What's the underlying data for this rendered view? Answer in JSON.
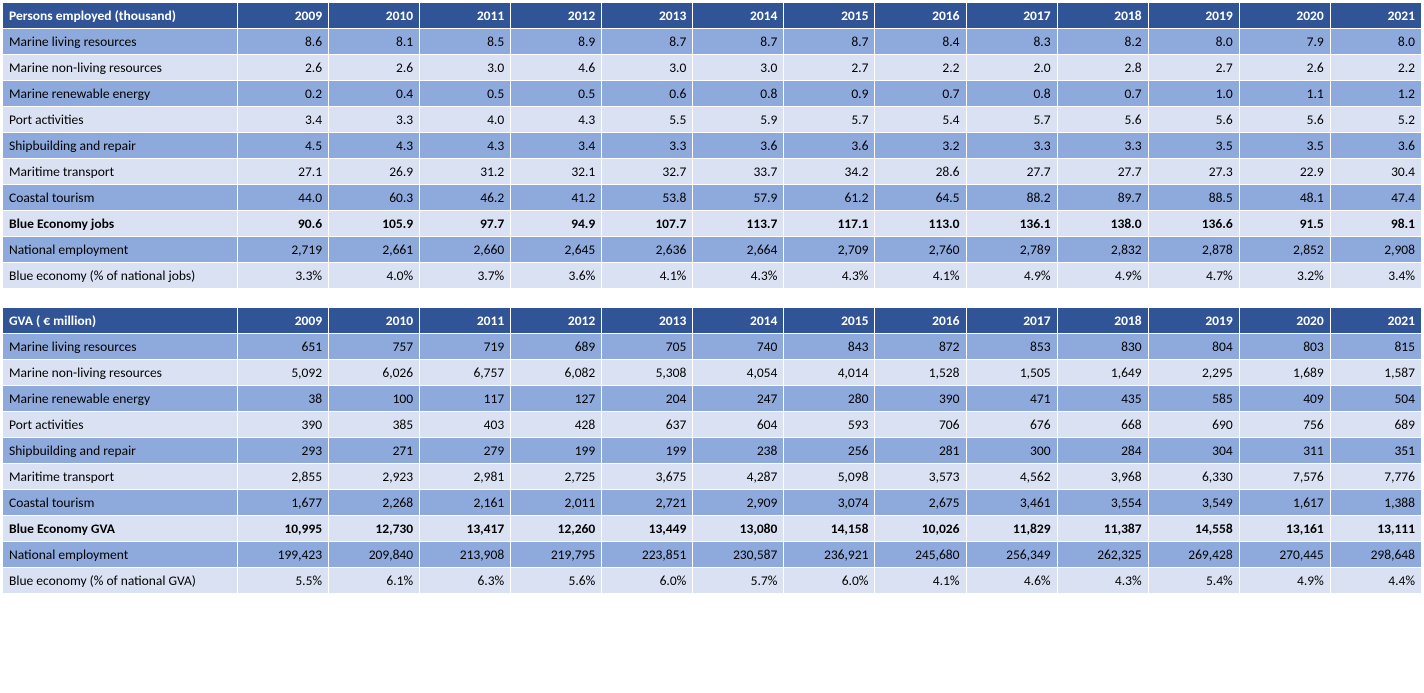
{
  "colors": {
    "header_bg": "#305496",
    "header_fg": "#ffffff",
    "band_dark": "#8ea9db",
    "band_light": "#d9e1f2",
    "text": "#000000"
  },
  "years": [
    "2009",
    "2010",
    "2011",
    "2012",
    "2013",
    "2014",
    "2015",
    "2016",
    "2017",
    "2018",
    "2019",
    "2020",
    "2021"
  ],
  "tables": [
    {
      "title": "Persons employed (thousand)",
      "rows": [
        {
          "label": "Marine living resources",
          "band": "dark",
          "bold": false,
          "values": [
            "8.6",
            "8.1",
            "8.5",
            "8.9",
            "8.7",
            "8.7",
            "8.7",
            "8.4",
            "8.3",
            "8.2",
            "8.0",
            "7.9",
            "8.0"
          ]
        },
        {
          "label": "Marine non-living resources",
          "band": "light",
          "bold": false,
          "values": [
            "2.6",
            "2.6",
            "3.0",
            "4.6",
            "3.0",
            "3.0",
            "2.7",
            "2.2",
            "2.0",
            "2.8",
            "2.7",
            "2.6",
            "2.2"
          ]
        },
        {
          "label": "Marine renewable energy",
          "band": "dark",
          "bold": false,
          "values": [
            "0.2",
            "0.4",
            "0.5",
            "0.5",
            "0.6",
            "0.8",
            "0.9",
            "0.7",
            "0.8",
            "0.7",
            "1.0",
            "1.1",
            "1.2"
          ]
        },
        {
          "label": "Port activities",
          "band": "light",
          "bold": false,
          "values": [
            "3.4",
            "3.3",
            "4.0",
            "4.3",
            "5.5",
            "5.9",
            "5.7",
            "5.4",
            "5.7",
            "5.6",
            "5.6",
            "5.6",
            "5.2"
          ]
        },
        {
          "label": "Shipbuilding and repair",
          "band": "dark",
          "bold": false,
          "values": [
            "4.5",
            "4.3",
            "4.3",
            "3.4",
            "3.3",
            "3.6",
            "3.6",
            "3.2",
            "3.3",
            "3.3",
            "3.5",
            "3.5",
            "3.6"
          ]
        },
        {
          "label": "Maritime transport",
          "band": "light",
          "bold": false,
          "values": [
            "27.1",
            "26.9",
            "31.2",
            "32.1",
            "32.7",
            "33.7",
            "34.2",
            "28.6",
            "27.7",
            "27.7",
            "27.3",
            "22.9",
            "30.4"
          ]
        },
        {
          "label": "Coastal tourism",
          "band": "dark",
          "bold": false,
          "values": [
            "44.0",
            "60.3",
            "46.2",
            "41.2",
            "53.8",
            "57.9",
            "61.2",
            "64.5",
            "88.2",
            "89.7",
            "88.5",
            "48.1",
            "47.4"
          ]
        },
        {
          "label": "Blue Economy jobs",
          "band": "light",
          "bold": true,
          "values": [
            "90.6",
            "105.9",
            "97.7",
            "94.9",
            "107.7",
            "113.7",
            "117.1",
            "113.0",
            "136.1",
            "138.0",
            "136.6",
            "91.5",
            "98.1"
          ]
        },
        {
          "label": "National employment",
          "band": "dark",
          "bold": false,
          "values": [
            "2,719",
            "2,661",
            "2,660",
            "2,645",
            "2,636",
            "2,664",
            "2,709",
            "2,760",
            "2,789",
            "2,832",
            "2,878",
            "2,852",
            "2,908"
          ]
        },
        {
          "label": "Blue economy (% of national jobs)",
          "band": "light",
          "bold": false,
          "values": [
            "3.3%",
            "4.0%",
            "3.7%",
            "3.6%",
            "4.1%",
            "4.3%",
            "4.3%",
            "4.1%",
            "4.9%",
            "4.9%",
            "4.7%",
            "3.2%",
            "3.4%"
          ]
        }
      ]
    },
    {
      "title": "GVA ( € million)",
      "rows": [
        {
          "label": "Marine living resources",
          "band": "dark",
          "bold": false,
          "values": [
            "651",
            "757",
            "719",
            "689",
            "705",
            "740",
            "843",
            "872",
            "853",
            "830",
            "804",
            "803",
            "815"
          ]
        },
        {
          "label": "Marine non-living resources",
          "band": "light",
          "bold": false,
          "values": [
            "5,092",
            "6,026",
            "6,757",
            "6,082",
            "5,308",
            "4,054",
            "4,014",
            "1,528",
            "1,505",
            "1,649",
            "2,295",
            "1,689",
            "1,587"
          ]
        },
        {
          "label": "Marine renewable energy",
          "band": "dark",
          "bold": false,
          "values": [
            "38",
            "100",
            "117",
            "127",
            "204",
            "247",
            "280",
            "390",
            "471",
            "435",
            "585",
            "409",
            "504"
          ]
        },
        {
          "label": "Port activities",
          "band": "light",
          "bold": false,
          "values": [
            "390",
            "385",
            "403",
            "428",
            "637",
            "604",
            "593",
            "706",
            "676",
            "668",
            "690",
            "756",
            "689"
          ]
        },
        {
          "label": "Shipbuilding and repair",
          "band": "dark",
          "bold": false,
          "values": [
            "293",
            "271",
            "279",
            "199",
            "199",
            "238",
            "256",
            "281",
            "300",
            "284",
            "304",
            "311",
            "351"
          ]
        },
        {
          "label": "Maritime transport",
          "band": "light",
          "bold": false,
          "values": [
            "2,855",
            "2,923",
            "2,981",
            "2,725",
            "3,675",
            "4,287",
            "5,098",
            "3,573",
            "4,562",
            "3,968",
            "6,330",
            "7,576",
            "7,776"
          ]
        },
        {
          "label": "Coastal tourism",
          "band": "dark",
          "bold": false,
          "values": [
            "1,677",
            "2,268",
            "2,161",
            "2,011",
            "2,721",
            "2,909",
            "3,074",
            "2,675",
            "3,461",
            "3,554",
            "3,549",
            "1,617",
            "1,388"
          ]
        },
        {
          "label": "Blue Economy GVA",
          "band": "light",
          "bold": true,
          "values": [
            "10,995",
            "12,730",
            "13,417",
            "12,260",
            "13,449",
            "13,080",
            "14,158",
            "10,026",
            "11,829",
            "11,387",
            "14,558",
            "13,161",
            "13,111"
          ]
        },
        {
          "label": "National employment",
          "band": "dark",
          "bold": false,
          "values": [
            "199,423",
            "209,840",
            "213,908",
            "219,795",
            "223,851",
            "230,587",
            "236,921",
            "245,680",
            "256,349",
            "262,325",
            "269,428",
            "270,445",
            "298,648"
          ]
        },
        {
          "label": "Blue economy (% of national GVA)",
          "band": "light",
          "bold": false,
          "values": [
            "5.5%",
            "6.1%",
            "6.3%",
            "5.6%",
            "6.0%",
            "5.7%",
            "6.0%",
            "4.1%",
            "4.6%",
            "4.3%",
            "5.4%",
            "4.9%",
            "4.4%"
          ]
        }
      ]
    }
  ]
}
